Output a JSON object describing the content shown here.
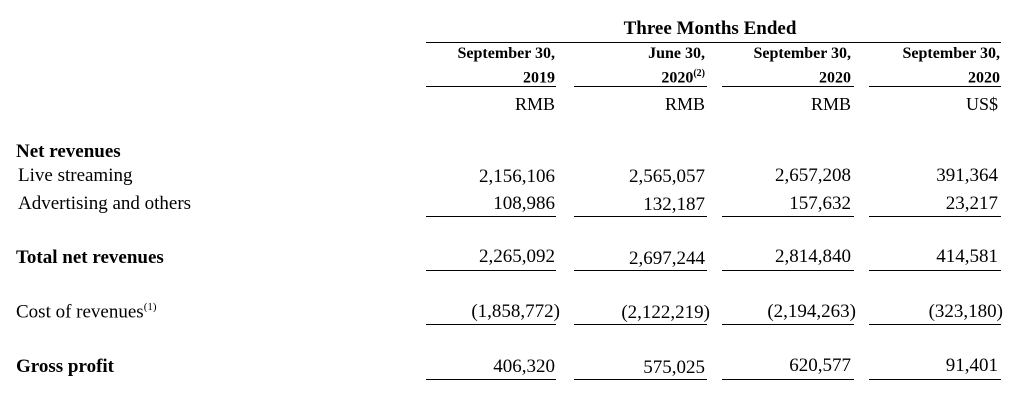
{
  "header": {
    "title": "Three Months Ended"
  },
  "columns": [
    {
      "line1": "September 30,",
      "line2": "2019",
      "note": "",
      "currency": "RMB"
    },
    {
      "line1": "June 30,",
      "line2": "2020",
      "note": "(2)",
      "currency": "RMB"
    },
    {
      "line1": "September 30,",
      "line2": "2020",
      "note": "",
      "currency": "RMB"
    },
    {
      "line1": "September 30,",
      "line2": "2020",
      "note": "",
      "currency": "US$"
    }
  ],
  "rows": {
    "net_revenues_heading": "Net revenues",
    "live_streaming": {
      "label": "Live streaming",
      "values": [
        "2,156,106",
        "2,565,057",
        "2,657,208",
        "391,364"
      ]
    },
    "advertising": {
      "label": "Advertising and others",
      "values": [
        "108,986",
        "132,187",
        "157,632",
        "23,217"
      ]
    },
    "total_net_revenues": {
      "label": "Total net revenues",
      "values": [
        "2,265,092",
        "2,697,244",
        "2,814,840",
        "414,581"
      ]
    },
    "cost_of_revenues": {
      "label": "Cost of revenues",
      "note": "(1)",
      "values": [
        "(1,858,772)",
        "(2,122,219)",
        "(2,194,263)",
        "(323,180)"
      ]
    },
    "gross_profit": {
      "label": "Gross profit",
      "values": [
        "406,320",
        "575,025",
        "620,577",
        "91,401"
      ]
    }
  }
}
